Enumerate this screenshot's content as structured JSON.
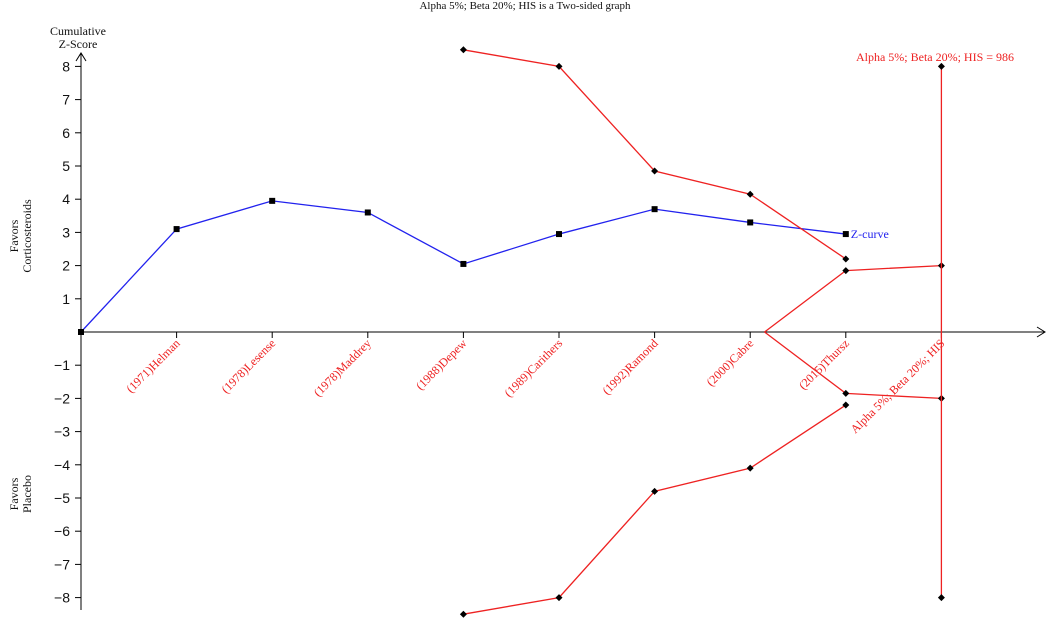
{
  "chart_data": {
    "type": "line",
    "title": "Alpha 5%; Beta 20%; HIS is a Two-sided graph",
    "ylabel": "Cumulative\nZ-Score",
    "ylim": [
      -8,
      8
    ],
    "y_ticks": [
      -8,
      -7,
      -6,
      -5,
      -4,
      -3,
      -2,
      -1,
      1,
      2,
      3,
      4,
      5,
      6,
      7,
      8
    ],
    "side_labels": {
      "upper": [
        "Favors",
        "Corticosteroids"
      ],
      "lower": [
        "Favors",
        "Placebo"
      ]
    },
    "categories": [
      "(1971)Helman",
      "(1978)Lesense",
      "(1978)Maddrey",
      "(1988)Depew",
      "(1989)Carithers",
      "(1992)Ramond",
      "(2000)Cabre",
      "(2015)Thursz",
      "Alpha 5%; Beta 20%; HIS"
    ],
    "series": [
      {
        "name": "Z-curve",
        "color": "#2222ee",
        "marker": "square",
        "x": [
          0,
          1,
          2,
          3,
          4,
          5,
          6,
          7,
          8
        ],
        "y": [
          0,
          3.1,
          3.95,
          3.6,
          2.05,
          2.95,
          3.7,
          3.3,
          2.95
        ]
      },
      {
        "name": "",
        "color": "#ee2222",
        "marker": "diamond",
        "x": [
          4,
          5,
          6,
          7,
          8,
          9
        ],
        "y": [
          8.5,
          8.0,
          4.85,
          4.15,
          2.2,
          null
        ]
      },
      {
        "name": "",
        "color": "#ee2222",
        "marker": "diamond",
        "x": [
          4,
          5,
          6,
          7,
          8,
          9
        ],
        "y": [
          -8.5,
          -8.0,
          -4.8,
          -4.1,
          -2.2,
          null
        ]
      },
      {
        "name": "",
        "color": "#ee2222",
        "marker": "diamond",
        "x": [
          7.15,
          8,
          9
        ],
        "y": [
          0,
          1.85,
          2.0
        ]
      },
      {
        "name": "",
        "color": "#ee2222",
        "marker": "diamond",
        "x": [
          7.15,
          8,
          9
        ],
        "y": [
          0,
          -1.85,
          -2.0
        ]
      }
    ],
    "his_line": {
      "label": "Alpha 5%; Beta 20%; HIS = 986",
      "x": 9,
      "y_range": [
        -8,
        8
      ],
      "color": "#ee2222"
    },
    "colors": {
      "zcurve": "#2222ee",
      "boundary": "#ee2222",
      "axis": "#000000"
    }
  }
}
